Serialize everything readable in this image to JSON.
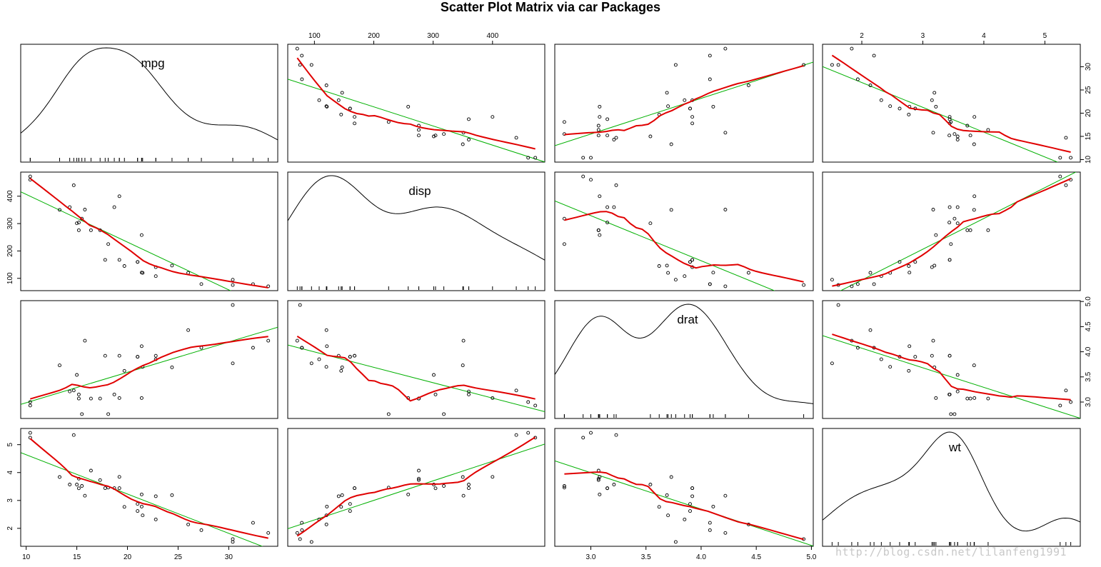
{
  "title": "Scatter Plot Matrix via car Packages",
  "watermark": "http://blog.csdn.net/lilanfeng1991",
  "colors": {
    "points": "#000000",
    "fit_line": "#00b000",
    "smooth": "#e00000",
    "density": "#000000"
  },
  "chart_data": {
    "type": "scatter",
    "title": "Scatter Plot Matrix via car Packages",
    "variables": [
      "mpg",
      "disp",
      "drat",
      "wt"
    ],
    "diagonal": "density",
    "axis_ranges": {
      "mpg": [
        10.4,
        33.9
      ],
      "disp": [
        71.1,
        472
      ],
      "drat": [
        2.76,
        4.93
      ],
      "wt": [
        1.513,
        5.424
      ]
    },
    "tick_values": {
      "mpg": [
        10,
        15,
        20,
        25,
        30
      ],
      "disp": [
        100,
        200,
        300,
        400
      ],
      "drat": [
        3.0,
        3.5,
        4.0,
        4.5,
        5.0
      ],
      "wt": [
        2,
        3,
        4,
        5
      ]
    },
    "tick_labels": {
      "mpg_bottom": [
        "10",
        "15",
        "20",
        "25",
        "30"
      ],
      "mpg_right": [
        "10",
        "15",
        "20",
        "25",
        "30"
      ],
      "disp_top": [
        "100",
        "200",
        "300",
        "400"
      ],
      "disp_left": [
        "100",
        "200",
        "300",
        "400"
      ],
      "drat_bottom": [
        "3.0",
        "3.5",
        "4.0",
        "4.5",
        "5.0"
      ],
      "drat_right": [
        "3.0",
        "3.5",
        "4.0",
        "4.5",
        "5.0"
      ],
      "wt_top": [
        "2",
        "3",
        "4",
        "5"
      ],
      "wt_left": [
        "2",
        "3",
        "4",
        "5"
      ]
    },
    "series": [
      {
        "mpg": [
          21,
          21,
          22.8,
          21.4,
          18.7,
          18.1,
          14.3,
          24.4,
          22.8,
          19.2,
          17.8,
          16.4,
          17.3,
          15.2,
          10.4,
          10.4,
          14.7,
          32.4,
          30.4,
          33.9,
          21.5,
          15.5,
          15.2,
          13.3,
          19.2,
          27.3,
          26,
          30.4,
          15.8,
          19.7,
          15,
          21.4
        ],
        "disp": [
          160,
          160,
          108,
          258,
          360,
          225,
          360,
          146.7,
          140.8,
          167.6,
          167.6,
          275.8,
          275.8,
          275.8,
          472,
          460,
          440,
          78.7,
          75.7,
          71.1,
          120.1,
          318,
          304,
          350,
          400,
          79,
          120.3,
          95.1,
          351,
          145,
          301,
          121
        ],
        "drat": [
          3.9,
          3.9,
          3.85,
          3.08,
          3.15,
          2.76,
          3.21,
          3.69,
          3.92,
          3.92,
          3.92,
          3.07,
          3.07,
          3.07,
          2.93,
          3,
          3.23,
          4.08,
          4.93,
          4.22,
          3.7,
          2.76,
          3.15,
          3.73,
          3.08,
          4.08,
          4.43,
          3.77,
          4.22,
          3.62,
          3.54,
          4.11
        ],
        "wt": [
          2.62,
          2.875,
          2.32,
          3.215,
          3.44,
          3.46,
          3.57,
          3.19,
          3.15,
          3.44,
          3.44,
          4.07,
          3.73,
          3.78,
          5.25,
          5.424,
          5.345,
          2.2,
          1.615,
          1.835,
          2.465,
          3.52,
          3.435,
          3.84,
          3.845,
          1.935,
          2.14,
          1.513,
          3.17,
          2.77,
          3.57,
          2.78
        ]
      }
    ],
    "grid": false,
    "legend": "none"
  }
}
